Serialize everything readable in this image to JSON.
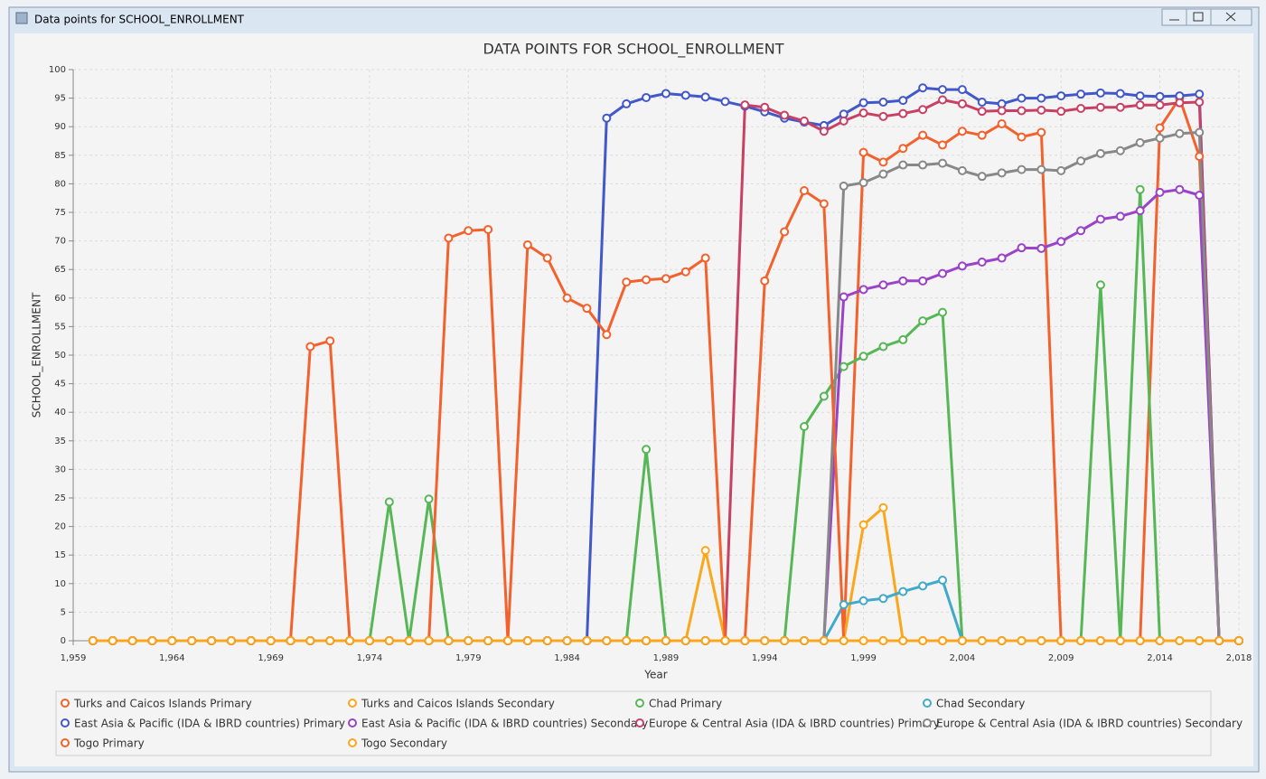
{
  "window_title": "Data points for SCHOOL_ENROLLMENT",
  "chart_data": {
    "type": "line",
    "title": "DATA POINTS FOR SCHOOL_ENROLLMENT",
    "x_label": "Year",
    "y_label": "SCHOOL_ENROLLMENT",
    "xlim": [
      1959,
      2018
    ],
    "ylim": [
      0,
      100
    ],
    "xticks": [
      {
        "value": 1959,
        "label": "1,959"
      },
      {
        "value": 1964,
        "label": "1,964"
      },
      {
        "value": 1969,
        "label": "1,969"
      },
      {
        "value": 1974,
        "label": "1,974"
      },
      {
        "value": 1979,
        "label": "1,979"
      },
      {
        "value": 1984,
        "label": "1,984"
      },
      {
        "value": 1989,
        "label": "1,989"
      },
      {
        "value": 1994,
        "label": "1,994"
      },
      {
        "value": 1999,
        "label": "1,999"
      },
      {
        "value": 2004,
        "label": "2,004"
      },
      {
        "value": 2009,
        "label": "2,009"
      },
      {
        "value": 2014,
        "label": "2,014"
      },
      {
        "value": 2018,
        "label": "2,018"
      }
    ],
    "yticks": [
      0,
      5,
      10,
      15,
      20,
      25,
      30,
      35,
      40,
      45,
      50,
      55,
      60,
      65,
      70,
      75,
      80,
      85,
      90,
      95,
      100
    ],
    "grid": true,
    "x": [
      1960,
      1961,
      1962,
      1963,
      1964,
      1965,
      1966,
      1967,
      1968,
      1969,
      1970,
      1971,
      1972,
      1973,
      1974,
      1975,
      1976,
      1977,
      1978,
      1979,
      1980,
      1981,
      1982,
      1983,
      1984,
      1985,
      1986,
      1987,
      1988,
      1989,
      1990,
      1991,
      1992,
      1993,
      1994,
      1995,
      1996,
      1997,
      1998,
      1999,
      2000,
      2001,
      2002,
      2003,
      2004,
      2005,
      2006,
      2007,
      2008,
      2009,
      2010,
      2011,
      2012,
      2013,
      2014,
      2015,
      2016,
      2017,
      2018
    ],
    "series": [
      {
        "name": "Turks and Caicos Islands Primary",
        "color": "#f3622d",
        "values": [
          0,
          0,
          0,
          0,
          0,
          0,
          0,
          0,
          0,
          0,
          0,
          0,
          0,
          0,
          0,
          0,
          0,
          0,
          0,
          0,
          0,
          0,
          0,
          0,
          0,
          0,
          0,
          0,
          0,
          0,
          0,
          0,
          0,
          0,
          0,
          0,
          0,
          0,
          0,
          85.5,
          83.8,
          86.2,
          88.5,
          86.8,
          89.2,
          88.5,
          90.5,
          88.2,
          89,
          0,
          0,
          0,
          0,
          0,
          89.8,
          95,
          84.8,
          0,
          0
        ]
      },
      {
        "name": "Turks and Caicos Islands Secondary",
        "color": "#fba71b",
        "values": [
          0,
          0,
          0,
          0,
          0,
          0,
          0,
          0,
          0,
          0,
          0,
          0,
          0,
          0,
          0,
          0,
          0,
          0,
          0,
          0,
          0,
          0,
          0,
          0,
          0,
          0,
          0,
          0,
          0,
          0,
          0,
          15.8,
          0,
          0,
          0,
          0,
          0,
          0,
          0,
          20.3,
          23.3,
          0,
          0,
          0,
          0,
          0,
          0,
          0,
          0,
          0,
          0,
          0,
          0,
          0,
          0,
          0,
          0,
          0,
          0
        ]
      },
      {
        "name": "Chad Primary",
        "color": "#57b757",
        "values": [
          0,
          0,
          0,
          0,
          0,
          0,
          0,
          0,
          0,
          0,
          0,
          0,
          0,
          0,
          0,
          24.3,
          0,
          24.8,
          0,
          0,
          0,
          0,
          0,
          0,
          0,
          0,
          0,
          0,
          33.5,
          0,
          0,
          0,
          0,
          0,
          0,
          0,
          37.5,
          42.8,
          48,
          49.8,
          51.5,
          52.7,
          56,
          57.5,
          0,
          0,
          0,
          0,
          0,
          0,
          0,
          62.3,
          0,
          79,
          0,
          0,
          0,
          0,
          0
        ]
      },
      {
        "name": "Chad Secondary",
        "color": "#41a9c9",
        "values": [
          0,
          0,
          0,
          0,
          0,
          0,
          0,
          0,
          0,
          0,
          0,
          0,
          0,
          0,
          0,
          0,
          0,
          0,
          0,
          0,
          0,
          0,
          0,
          0,
          0,
          0,
          0,
          0,
          0,
          0,
          0,
          0,
          0,
          0,
          0,
          0,
          0,
          0,
          6.3,
          7,
          7.4,
          8.6,
          9.6,
          10.6,
          0,
          0,
          0,
          0,
          0,
          0,
          0,
          0,
          0,
          0,
          0,
          0,
          0,
          0,
          0
        ]
      },
      {
        "name": "East Asia & Pacific (IDA & IBRD countries) Primary",
        "color": "#4258c9",
        "values": [
          0,
          0,
          0,
          0,
          0,
          0,
          0,
          0,
          0,
          0,
          0,
          0,
          0,
          0,
          0,
          0,
          0,
          0,
          0,
          0,
          0,
          0,
          0,
          0,
          0,
          0,
          91.5,
          94,
          95.1,
          95.8,
          95.5,
          95.2,
          94.4,
          93.6,
          92.6,
          91.5,
          90.8,
          90.2,
          92.2,
          94.2,
          94.3,
          94.6,
          96.8,
          96.5,
          96.5,
          94.3,
          94,
          95,
          95,
          95.4,
          95.7,
          95.9,
          95.8,
          95.4,
          95.3,
          95.4,
          95.7,
          0,
          0
        ]
      },
      {
        "name": "East Asia & Pacific (IDA & IBRD countries) Secondary",
        "color": "#9a42c8",
        "values": [
          0,
          0,
          0,
          0,
          0,
          0,
          0,
          0,
          0,
          0,
          0,
          0,
          0,
          0,
          0,
          0,
          0,
          0,
          0,
          0,
          0,
          0,
          0,
          0,
          0,
          0,
          0,
          0,
          0,
          0,
          0,
          0,
          0,
          0,
          0,
          0,
          0,
          0,
          60.2,
          61.5,
          62.3,
          63,
          63,
          64.3,
          65.6,
          66.3,
          67,
          68.8,
          68.7,
          69.9,
          71.8,
          73.8,
          74.3,
          75.3,
          78.5,
          79,
          78,
          0,
          0
        ]
      },
      {
        "name": "Europe & Central Asia (IDA & IBRD countries) Primary",
        "color": "#c84164",
        "values": [
          0,
          0,
          0,
          0,
          0,
          0,
          0,
          0,
          0,
          0,
          0,
          0,
          0,
          0,
          0,
          0,
          0,
          0,
          0,
          0,
          0,
          0,
          0,
          0,
          0,
          0,
          0,
          0,
          0,
          0,
          0,
          0,
          0,
          93.8,
          93.4,
          92,
          91,
          89.2,
          91,
          92.4,
          91.8,
          92.3,
          93,
          94.7,
          94,
          92.7,
          92.8,
          92.8,
          92.9,
          92.7,
          93.2,
          93.4,
          93.4,
          93.8,
          93.8,
          94.2,
          94.3,
          0,
          0
        ]
      },
      {
        "name": "Europe & Central Asia (IDA & IBRD countries) Secondary",
        "color": "#888888",
        "values": [
          0,
          0,
          0,
          0,
          0,
          0,
          0,
          0,
          0,
          0,
          0,
          0,
          0,
          0,
          0,
          0,
          0,
          0,
          0,
          0,
          0,
          0,
          0,
          0,
          0,
          0,
          0,
          0,
          0,
          0,
          0,
          0,
          0,
          0,
          0,
          0,
          0,
          0,
          79.6,
          80.2,
          81.7,
          83.3,
          83.3,
          83.6,
          82.3,
          81.3,
          81.9,
          82.5,
          82.5,
          82.3,
          84,
          85.3,
          85.8,
          87.2,
          88,
          88.8,
          89,
          0,
          0
        ]
      },
      {
        "name": "Togo Primary",
        "color": "#f3622d",
        "values": [
          0,
          0,
          0,
          0,
          0,
          0,
          0,
          0,
          0,
          0,
          0,
          51.5,
          52.5,
          0,
          0,
          0,
          0,
          0,
          70.5,
          71.8,
          72,
          0,
          69.3,
          67,
          60,
          58.2,
          53.6,
          62.8,
          63.2,
          63.4,
          64.6,
          67,
          0,
          0,
          63,
          71.6,
          78.8,
          76.5,
          0,
          0,
          0,
          0,
          0,
          0,
          0,
          0,
          0,
          0,
          0,
          0,
          0,
          0,
          0,
          0,
          0,
          0,
          0,
          0,
          0
        ]
      },
      {
        "name": "Togo Secondary",
        "color": "#fba71b",
        "values": [
          0,
          0,
          0,
          0,
          0,
          0,
          0,
          0,
          0,
          0,
          0,
          0,
          0,
          0,
          0,
          0,
          0,
          0,
          0,
          0,
          0,
          0,
          0,
          0,
          0,
          0,
          0,
          0,
          0,
          0,
          0,
          0,
          0,
          0,
          0,
          0,
          0,
          0,
          0,
          0,
          0,
          0,
          0,
          0,
          0,
          0,
          0,
          0,
          0,
          0,
          0,
          0,
          0,
          0,
          0,
          0,
          0,
          0,
          0
        ]
      }
    ]
  }
}
